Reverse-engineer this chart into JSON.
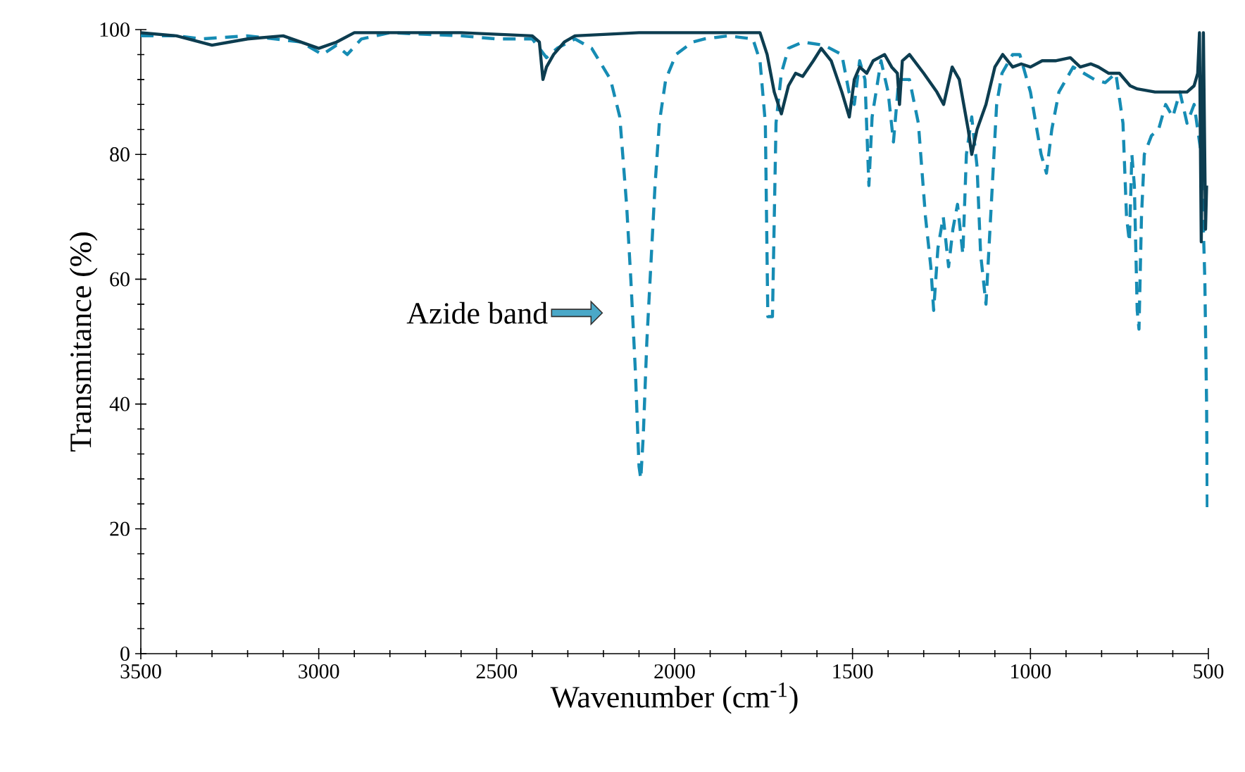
{
  "chart_data": {
    "type": "line",
    "xlabel": "Wavenumber (cm$^{-1}$)",
    "ylabel": "Transmitance (%)",
    "annotations": [
      "Azide band"
    ],
    "xlim": [
      3500,
      500
    ],
    "ylim": [
      0,
      100
    ],
    "xticks": [
      3500,
      3000,
      2500,
      2000,
      1500,
      1000,
      500
    ],
    "yticks": [
      0,
      20,
      40,
      60,
      80,
      100
    ],
    "marker": "none",
    "series": [
      {
        "color": "#168cb4",
        "line_style": "dashed",
        "x": [
          3500,
          3400,
          3330,
          3200,
          3050,
          2990,
          2950,
          2920,
          2880,
          2800,
          2600,
          2500,
          2400,
          2360,
          2330,
          2280,
          2233,
          2180,
          2154,
          2135,
          2123,
          2110,
          2100,
          2095,
          2088,
          2078,
          2067,
          2055,
          2043,
          2025,
          1996,
          1950,
          1917,
          1850,
          1780,
          1760,
          1745,
          1738,
          1725,
          1715,
          1700,
          1680,
          1640,
          1580,
          1530,
          1510,
          1495,
          1480,
          1465,
          1454,
          1445,
          1420,
          1400,
          1385,
          1370,
          1340,
          1315,
          1295,
          1280,
          1272,
          1260,
          1245,
          1230,
          1218,
          1205,
          1190,
          1180,
          1165,
          1150,
          1140,
          1125,
          1110,
          1095,
          1080,
          1050,
          1030,
          1000,
          985,
          970,
          955,
          940,
          920,
          900,
          880,
          850,
          820,
          790,
          760,
          740,
          730,
          722,
          715,
          708,
          700,
          695,
          688,
          680,
          660,
          640,
          620,
          600,
          580,
          560,
          540,
          520,
          510,
          505,
          503
        ],
        "values": [
          99,
          99,
          98.5,
          99,
          98,
          96,
          97.5,
          96,
          98.5,
          99.5,
          99,
          98.5,
          98.5,
          95.5,
          97,
          98.5,
          97,
          92,
          86,
          72,
          60,
          45,
          30,
          28,
          35,
          50,
          62,
          75,
          85,
          92,
          96,
          98,
          98.5,
          99,
          98.5,
          95,
          85,
          54,
          54,
          85,
          93,
          97,
          98,
          97.5,
          96,
          90,
          88,
          95,
          92,
          75,
          86,
          95,
          90,
          82,
          92,
          92,
          85,
          70,
          62,
          55,
          65,
          70,
          62,
          68,
          72,
          64,
          80,
          86,
          78,
          64,
          56,
          72,
          88,
          93,
          96,
          96,
          90,
          85,
          80,
          77,
          84,
          90,
          92,
          94,
          93,
          92,
          91.5,
          93,
          85,
          70,
          66,
          80,
          75,
          55,
          52,
          70,
          80,
          83,
          84,
          88,
          86,
          90,
          85,
          88,
          80,
          60,
          40,
          23
        ]
      },
      {
        "color": "#0d3d50",
        "line_style": "solid",
        "x": [
          3500,
          3400,
          3300,
          3200,
          3100,
          3000,
          2950,
          2900,
          2600,
          2400,
          2380,
          2370,
          2360,
          2340,
          2310,
          2280,
          2100,
          1800,
          1760,
          1740,
          1720,
          1700,
          1680,
          1660,
          1640,
          1610,
          1588,
          1560,
          1530,
          1509,
          1495,
          1480,
          1460,
          1442,
          1410,
          1390,
          1374,
          1368,
          1360,
          1340,
          1300,
          1263,
          1244,
          1220,
          1200,
          1175,
          1165,
          1150,
          1125,
          1100,
          1078,
          1050,
          1026,
          1000,
          967,
          930,
          888,
          860,
          830,
          809,
          780,
          750,
          720,
          700,
          650,
          600,
          560,
          540,
          530,
          525,
          520,
          514,
          508,
          505
        ],
        "values": [
          99.5,
          99,
          97.5,
          98.5,
          99,
          97,
          98,
          99.5,
          99.5,
          99,
          98,
          92,
          94,
          96,
          98,
          99,
          99.5,
          99.5,
          99.5,
          96,
          90,
          86.5,
          91,
          93,
          92.5,
          95,
          97,
          95,
          90,
          86,
          92,
          94,
          93,
          95,
          96,
          94,
          93,
          88,
          95,
          96,
          93,
          90,
          88,
          94,
          92,
          84,
          80,
          84,
          88,
          94,
          96,
          94,
          94.5,
          94,
          95,
          95,
          95.5,
          94,
          94.5,
          94,
          93,
          93,
          91,
          90.5,
          90,
          90,
          90,
          91,
          93,
          99.5,
          66,
          99.5,
          68,
          75
        ]
      }
    ]
  }
}
